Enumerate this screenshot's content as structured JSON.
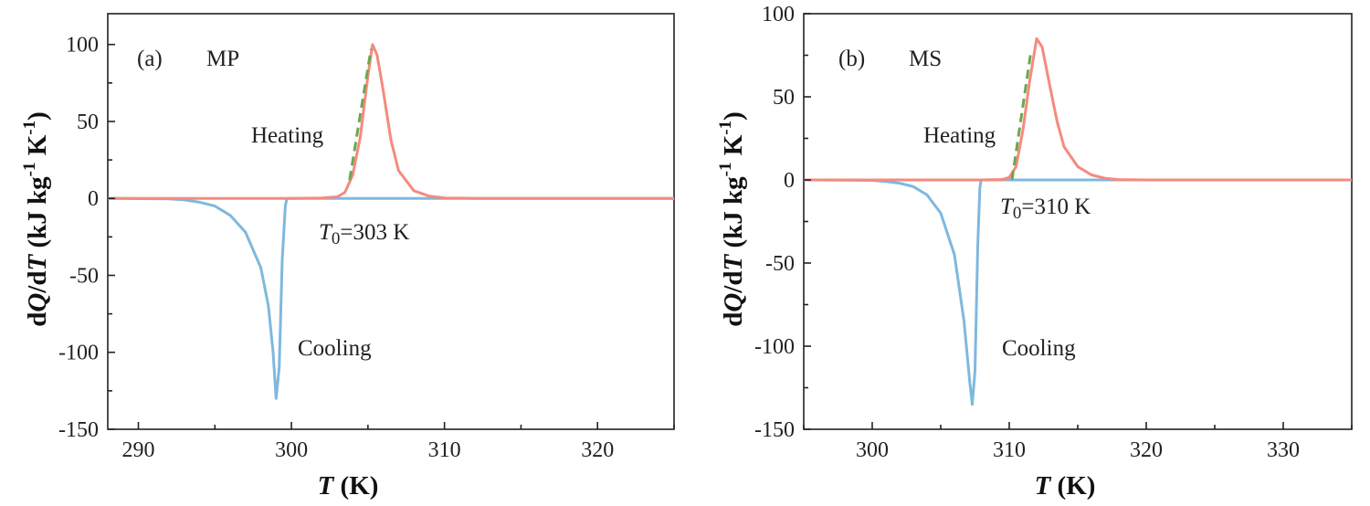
{
  "chart_data": [
    {
      "type": "line",
      "panel_label": "(a)",
      "sample": "MP",
      "xlabel": "T (K)",
      "ylabel": "dQ/dT (kJ kg-1 K-1)",
      "xlim": [
        288,
        325
      ],
      "ylim": [
        -150,
        120
      ],
      "xticks": [
        290,
        300,
        310,
        320
      ],
      "yticks": [
        -150,
        -100,
        -50,
        0,
        50,
        100
      ],
      "annotations": {
        "heating": "Heating",
        "cooling": "Cooling",
        "t0": "T0=303 K"
      },
      "t0_value": 303,
      "colors": {
        "heating": "#f58a7e",
        "cooling": "#7fb8dd",
        "fit": "#6aa84f"
      },
      "series": [
        {
          "values": [
            [
              288,
              0
            ],
            [
              300,
              0
            ],
            [
              302,
              0.3
            ],
            [
              303,
              1
            ],
            [
              303.5,
              4
            ],
            [
              304,
              15
            ],
            [
              304.5,
              40
            ],
            [
              305,
              80
            ],
            [
              305.3,
              100
            ],
            [
              305.6,
              93
            ],
            [
              306,
              70
            ],
            [
              306.5,
              38
            ],
            [
              307,
              18
            ],
            [
              308,
              5
            ],
            [
              309,
              1.5
            ],
            [
              310,
              0.3
            ],
            [
              312,
              0
            ],
            [
              325,
              0
            ]
          ]
        },
        {
          "values": [
            [
              288,
              0
            ],
            [
              292,
              -0.3
            ],
            [
              293,
              -1
            ],
            [
              294,
              -2.5
            ],
            [
              295,
              -5
            ],
            [
              296,
              -11
            ],
            [
              297,
              -22
            ],
            [
              298,
              -45
            ],
            [
              298.5,
              -70
            ],
            [
              298.8,
              -100
            ],
            [
              299,
              -130
            ],
            [
              299.2,
              -110
            ],
            [
              299.4,
              -40
            ],
            [
              299.6,
              -5
            ],
            [
              299.7,
              0
            ],
            [
              325,
              0
            ]
          ]
        },
        {
          "values": [
            [
              303.8,
              12
            ],
            [
              305.2,
              97
            ]
          ]
        }
      ]
    },
    {
      "type": "line",
      "panel_label": "(b)",
      "sample": "MS",
      "xlabel": "T (K)",
      "ylabel": "dQ/dT (kJ kg-1 K-1)",
      "xlim": [
        295,
        335
      ],
      "ylim": [
        -150,
        100
      ],
      "xticks": [
        300,
        310,
        320,
        330
      ],
      "yticks": [
        -150,
        -100,
        -50,
        0,
        50,
        100
      ],
      "annotations": {
        "heating": "Heating",
        "cooling": "Cooling",
        "t0": "T0=310 K"
      },
      "t0_value": 310,
      "colors": {
        "heating": "#f58a7e",
        "cooling": "#7fb8dd",
        "fit": "#6aa84f"
      },
      "series": [
        {
          "values": [
            [
              295,
              0
            ],
            [
              308,
              0
            ],
            [
              309.5,
              0.3
            ],
            [
              310,
              1.5
            ],
            [
              310.5,
              8
            ],
            [
              311,
              30
            ],
            [
              311.5,
              60
            ],
            [
              312,
              85
            ],
            [
              312.4,
              80
            ],
            [
              313,
              55
            ],
            [
              313.5,
              35
            ],
            [
              314,
              20
            ],
            [
              315,
              8
            ],
            [
              316,
              3
            ],
            [
              317,
              1
            ],
            [
              318,
              0.2
            ],
            [
              320,
              0
            ],
            [
              335,
              0
            ]
          ]
        },
        {
          "values": [
            [
              295,
              0
            ],
            [
              300,
              -0.3
            ],
            [
              301,
              -1
            ],
            [
              302,
              -2
            ],
            [
              303,
              -4
            ],
            [
              304,
              -9
            ],
            [
              305,
              -20
            ],
            [
              306,
              -45
            ],
            [
              306.7,
              -85
            ],
            [
              307.1,
              -120
            ],
            [
              307.3,
              -135
            ],
            [
              307.5,
              -115
            ],
            [
              307.7,
              -40
            ],
            [
              307.85,
              -5
            ],
            [
              307.95,
              0
            ],
            [
              335,
              0
            ]
          ]
        },
        {
          "values": [
            [
              310.2,
              0
            ],
            [
              311.6,
              78
            ]
          ]
        }
      ]
    }
  ]
}
